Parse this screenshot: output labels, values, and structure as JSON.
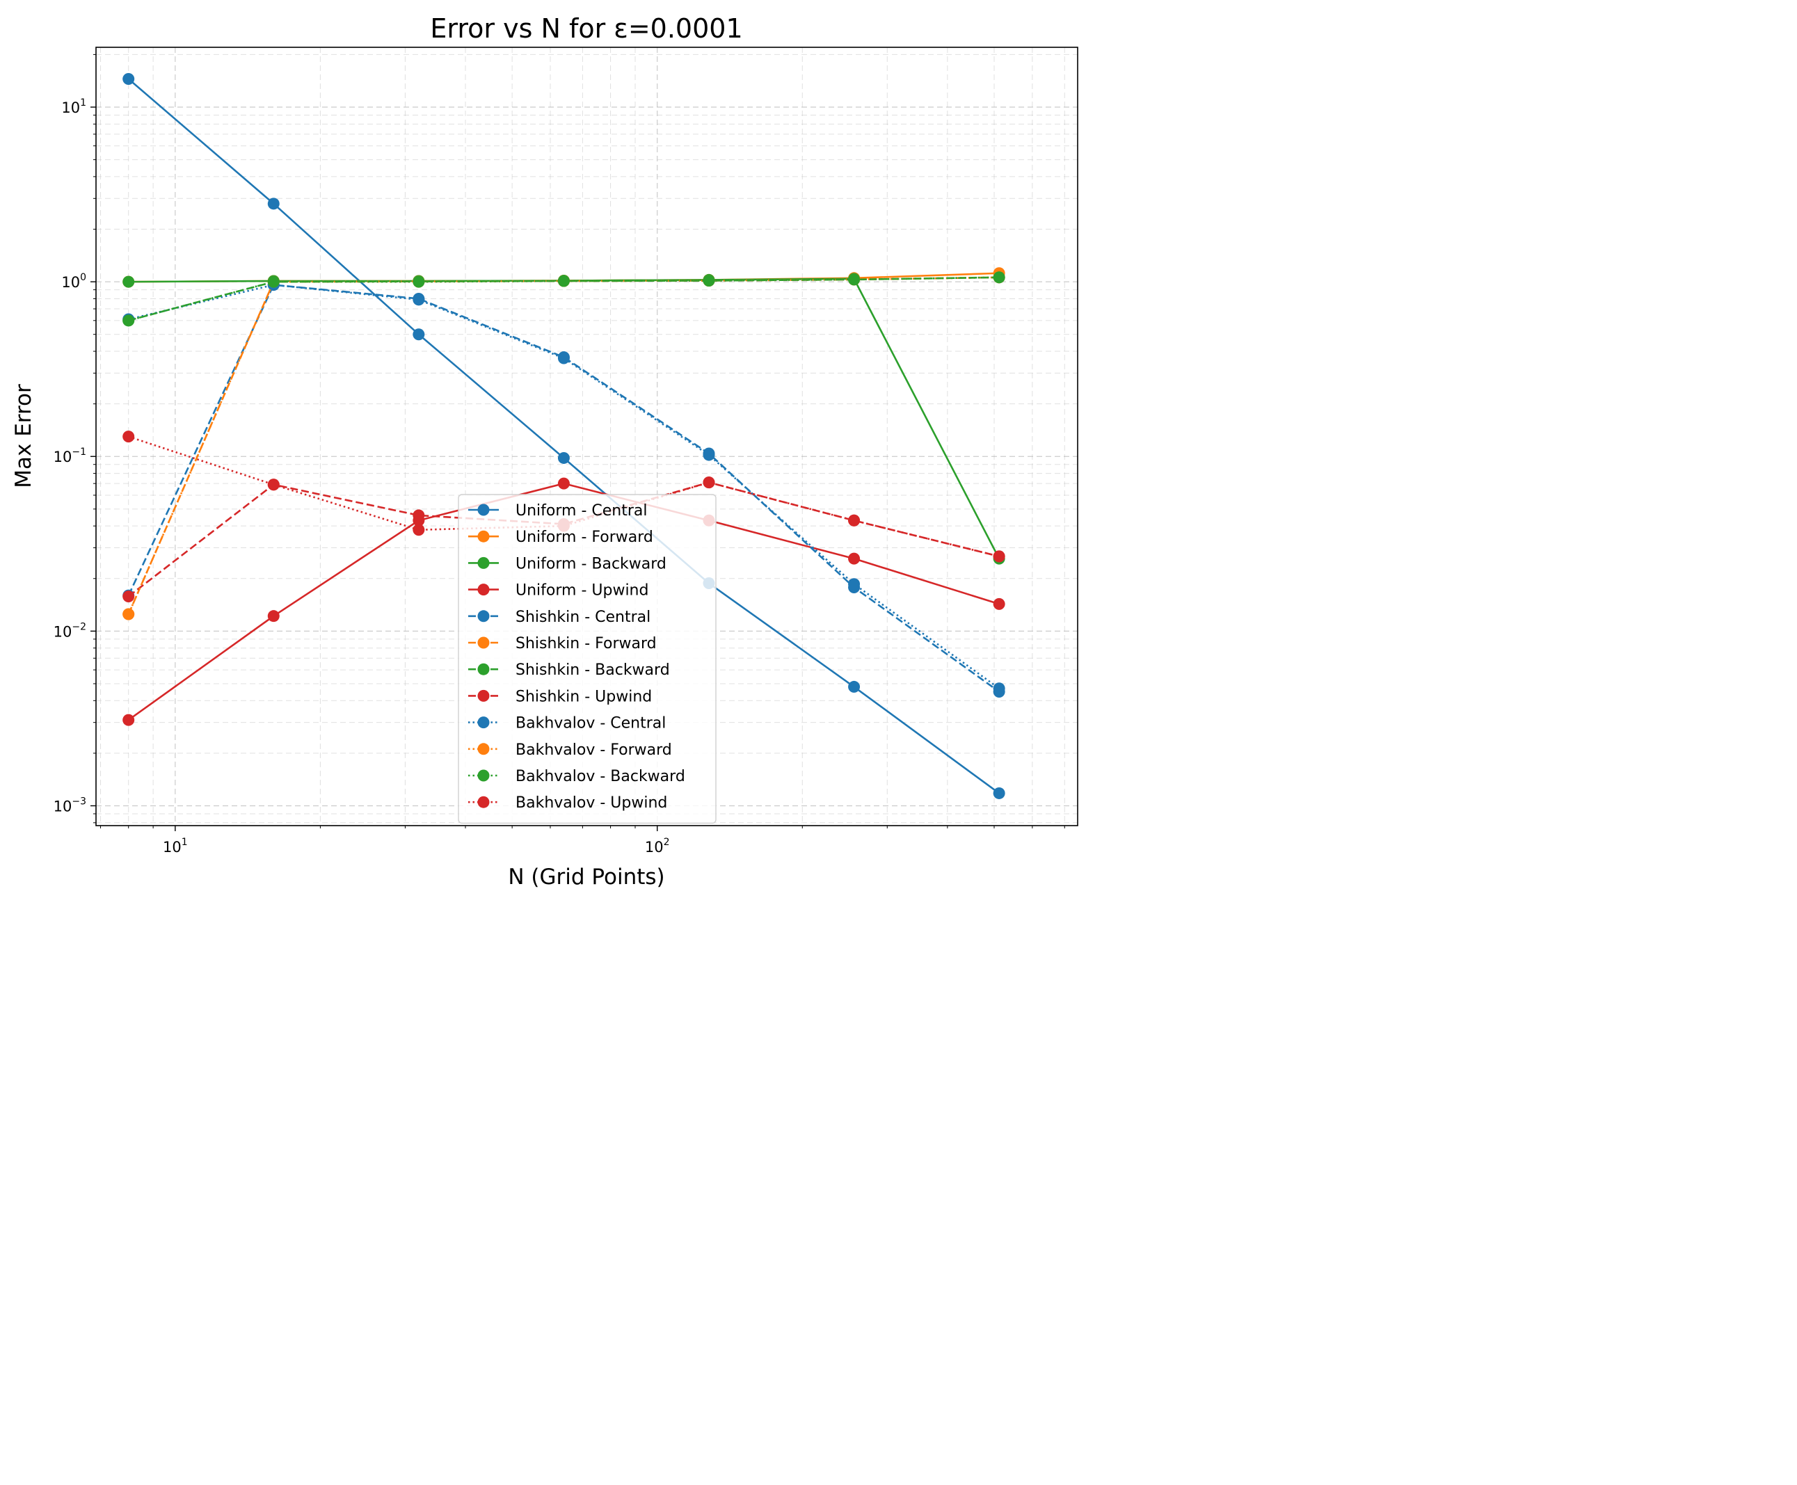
{
  "chart_data": {
    "type": "line",
    "title": "Error vs N for ε=0.0001",
    "xlabel": "N (Grid Points)",
    "ylabel": "Max Error",
    "x_scale": "log",
    "y_scale": "log",
    "xlim": [
      6.85,
      745
    ],
    "ylim": [
      0.00077,
      22
    ],
    "grid": true,
    "legend_position": "lower center",
    "x_ticks": [
      {
        "value": 10,
        "base": "10",
        "exp": "1"
      },
      {
        "value": 100,
        "base": "10",
        "exp": "2"
      }
    ],
    "y_ticks": [
      {
        "value": 0.001,
        "base": "10",
        "exp": "−3"
      },
      {
        "value": 0.01,
        "base": "10",
        "exp": "−2"
      },
      {
        "value": 0.1,
        "base": "10",
        "exp": "−1"
      },
      {
        "value": 1,
        "base": "10",
        "exp": "0"
      },
      {
        "value": 10,
        "base": "10",
        "exp": "1"
      }
    ],
    "x": [
      8,
      16,
      32,
      64,
      128,
      256,
      512
    ],
    "series": [
      {
        "name": "Uniform - Central",
        "color": "#1f77b4",
        "style": "solid",
        "values": [
          14.5,
          2.8,
          0.5,
          0.098,
          0.0188,
          0.0048,
          0.00118
        ]
      },
      {
        "name": "Uniform - Forward",
        "color": "#ff7f0e",
        "style": "solid",
        "values": [
          1.0,
          1.01,
          1.01,
          1.015,
          1.025,
          1.05,
          1.12
        ]
      },
      {
        "name": "Uniform - Backward",
        "color": "#2ca02c",
        "style": "solid",
        "values": [
          1.0,
          1.01,
          1.01,
          1.015,
          1.025,
          1.04,
          0.026
        ]
      },
      {
        "name": "Uniform - Upwind",
        "color": "#d62728",
        "style": "solid",
        "values": [
          0.0031,
          0.0122,
          0.043,
          0.07,
          0.043,
          0.026,
          0.0143
        ]
      },
      {
        "name": "Shishkin - Central",
        "color": "#1f77b4",
        "style": "dashed",
        "values": [
          0.016,
          0.96,
          0.8,
          0.37,
          0.104,
          0.0178,
          0.0045
        ]
      },
      {
        "name": "Shishkin - Forward",
        "color": "#ff7f0e",
        "style": "dashed",
        "values": [
          0.0125,
          1.0,
          1.005,
          1.01,
          1.015,
          1.03,
          1.06
        ]
      },
      {
        "name": "Shishkin - Backward",
        "color": "#2ca02c",
        "style": "dashed",
        "values": [
          0.6,
          1.0,
          1.005,
          1.01,
          1.015,
          1.03,
          1.06
        ]
      },
      {
        "name": "Shishkin - Upwind",
        "color": "#d62728",
        "style": "dashed",
        "values": [
          0.0158,
          0.069,
          0.046,
          0.041,
          0.071,
          0.043,
          0.0268
        ]
      },
      {
        "name": "Bakhvalov - Central",
        "color": "#1f77b4",
        "style": "dotted",
        "values": [
          0.61,
          0.96,
          0.79,
          0.365,
          0.102,
          0.0186,
          0.0047
        ]
      },
      {
        "name": "Bakhvalov - Forward",
        "color": "#ff7f0e",
        "style": "dotted",
        "values": [
          0.0125,
          1.0,
          1.0,
          1.01,
          1.015,
          1.03,
          1.06
        ]
      },
      {
        "name": "Bakhvalov - Backward",
        "color": "#2ca02c",
        "style": "dotted",
        "values": [
          0.6,
          1.0,
          1.0,
          1.01,
          1.015,
          1.03,
          1.06
        ]
      },
      {
        "name": "Bakhvalov - Upwind",
        "color": "#d62728",
        "style": "dotted",
        "values": [
          0.13,
          0.069,
          0.038,
          0.04,
          0.071,
          0.043,
          0.0268
        ]
      }
    ]
  }
}
